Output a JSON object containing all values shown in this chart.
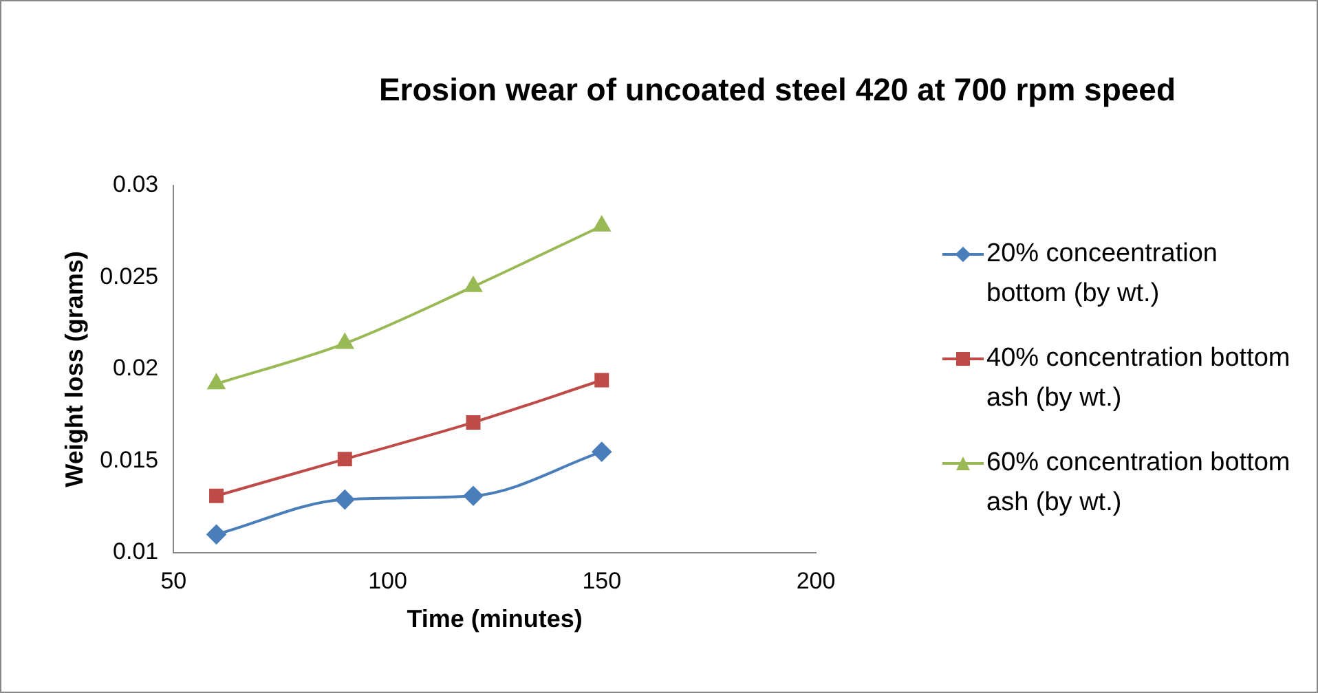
{
  "chart_data": {
    "type": "line",
    "title": "Erosion wear of uncoated steel 420 at 700 rpm speed",
    "xlabel": "Time (minutes)",
    "ylabel": "Weight loss (grams)",
    "x": [
      60,
      90,
      120,
      150
    ],
    "series": [
      {
        "name": "20% conceentration bottom (by wt.)",
        "color": "#4a7ebb",
        "marker": "diamond",
        "values": [
          0.011,
          0.0129,
          0.0131,
          0.0155
        ]
      },
      {
        "name": "40% concentration bottom ash (by wt.)",
        "color": "#be4b48",
        "marker": "square",
        "values": [
          0.0131,
          0.0151,
          0.0171,
          0.0194
        ]
      },
      {
        "name": "60% concentration bottom ash (by wt.)",
        "color": "#98b954",
        "marker": "triangle",
        "values": [
          0.0192,
          0.0214,
          0.0245,
          0.0278
        ]
      }
    ],
    "xlim": [
      50,
      200
    ],
    "xticks": [
      50,
      100,
      150,
      200
    ],
    "ylim": [
      0.01,
      0.03
    ],
    "yticks": [
      0.01,
      0.015,
      0.02,
      0.025,
      0.03
    ],
    "grid": false,
    "legend": "right",
    "line_style": "solid"
  }
}
